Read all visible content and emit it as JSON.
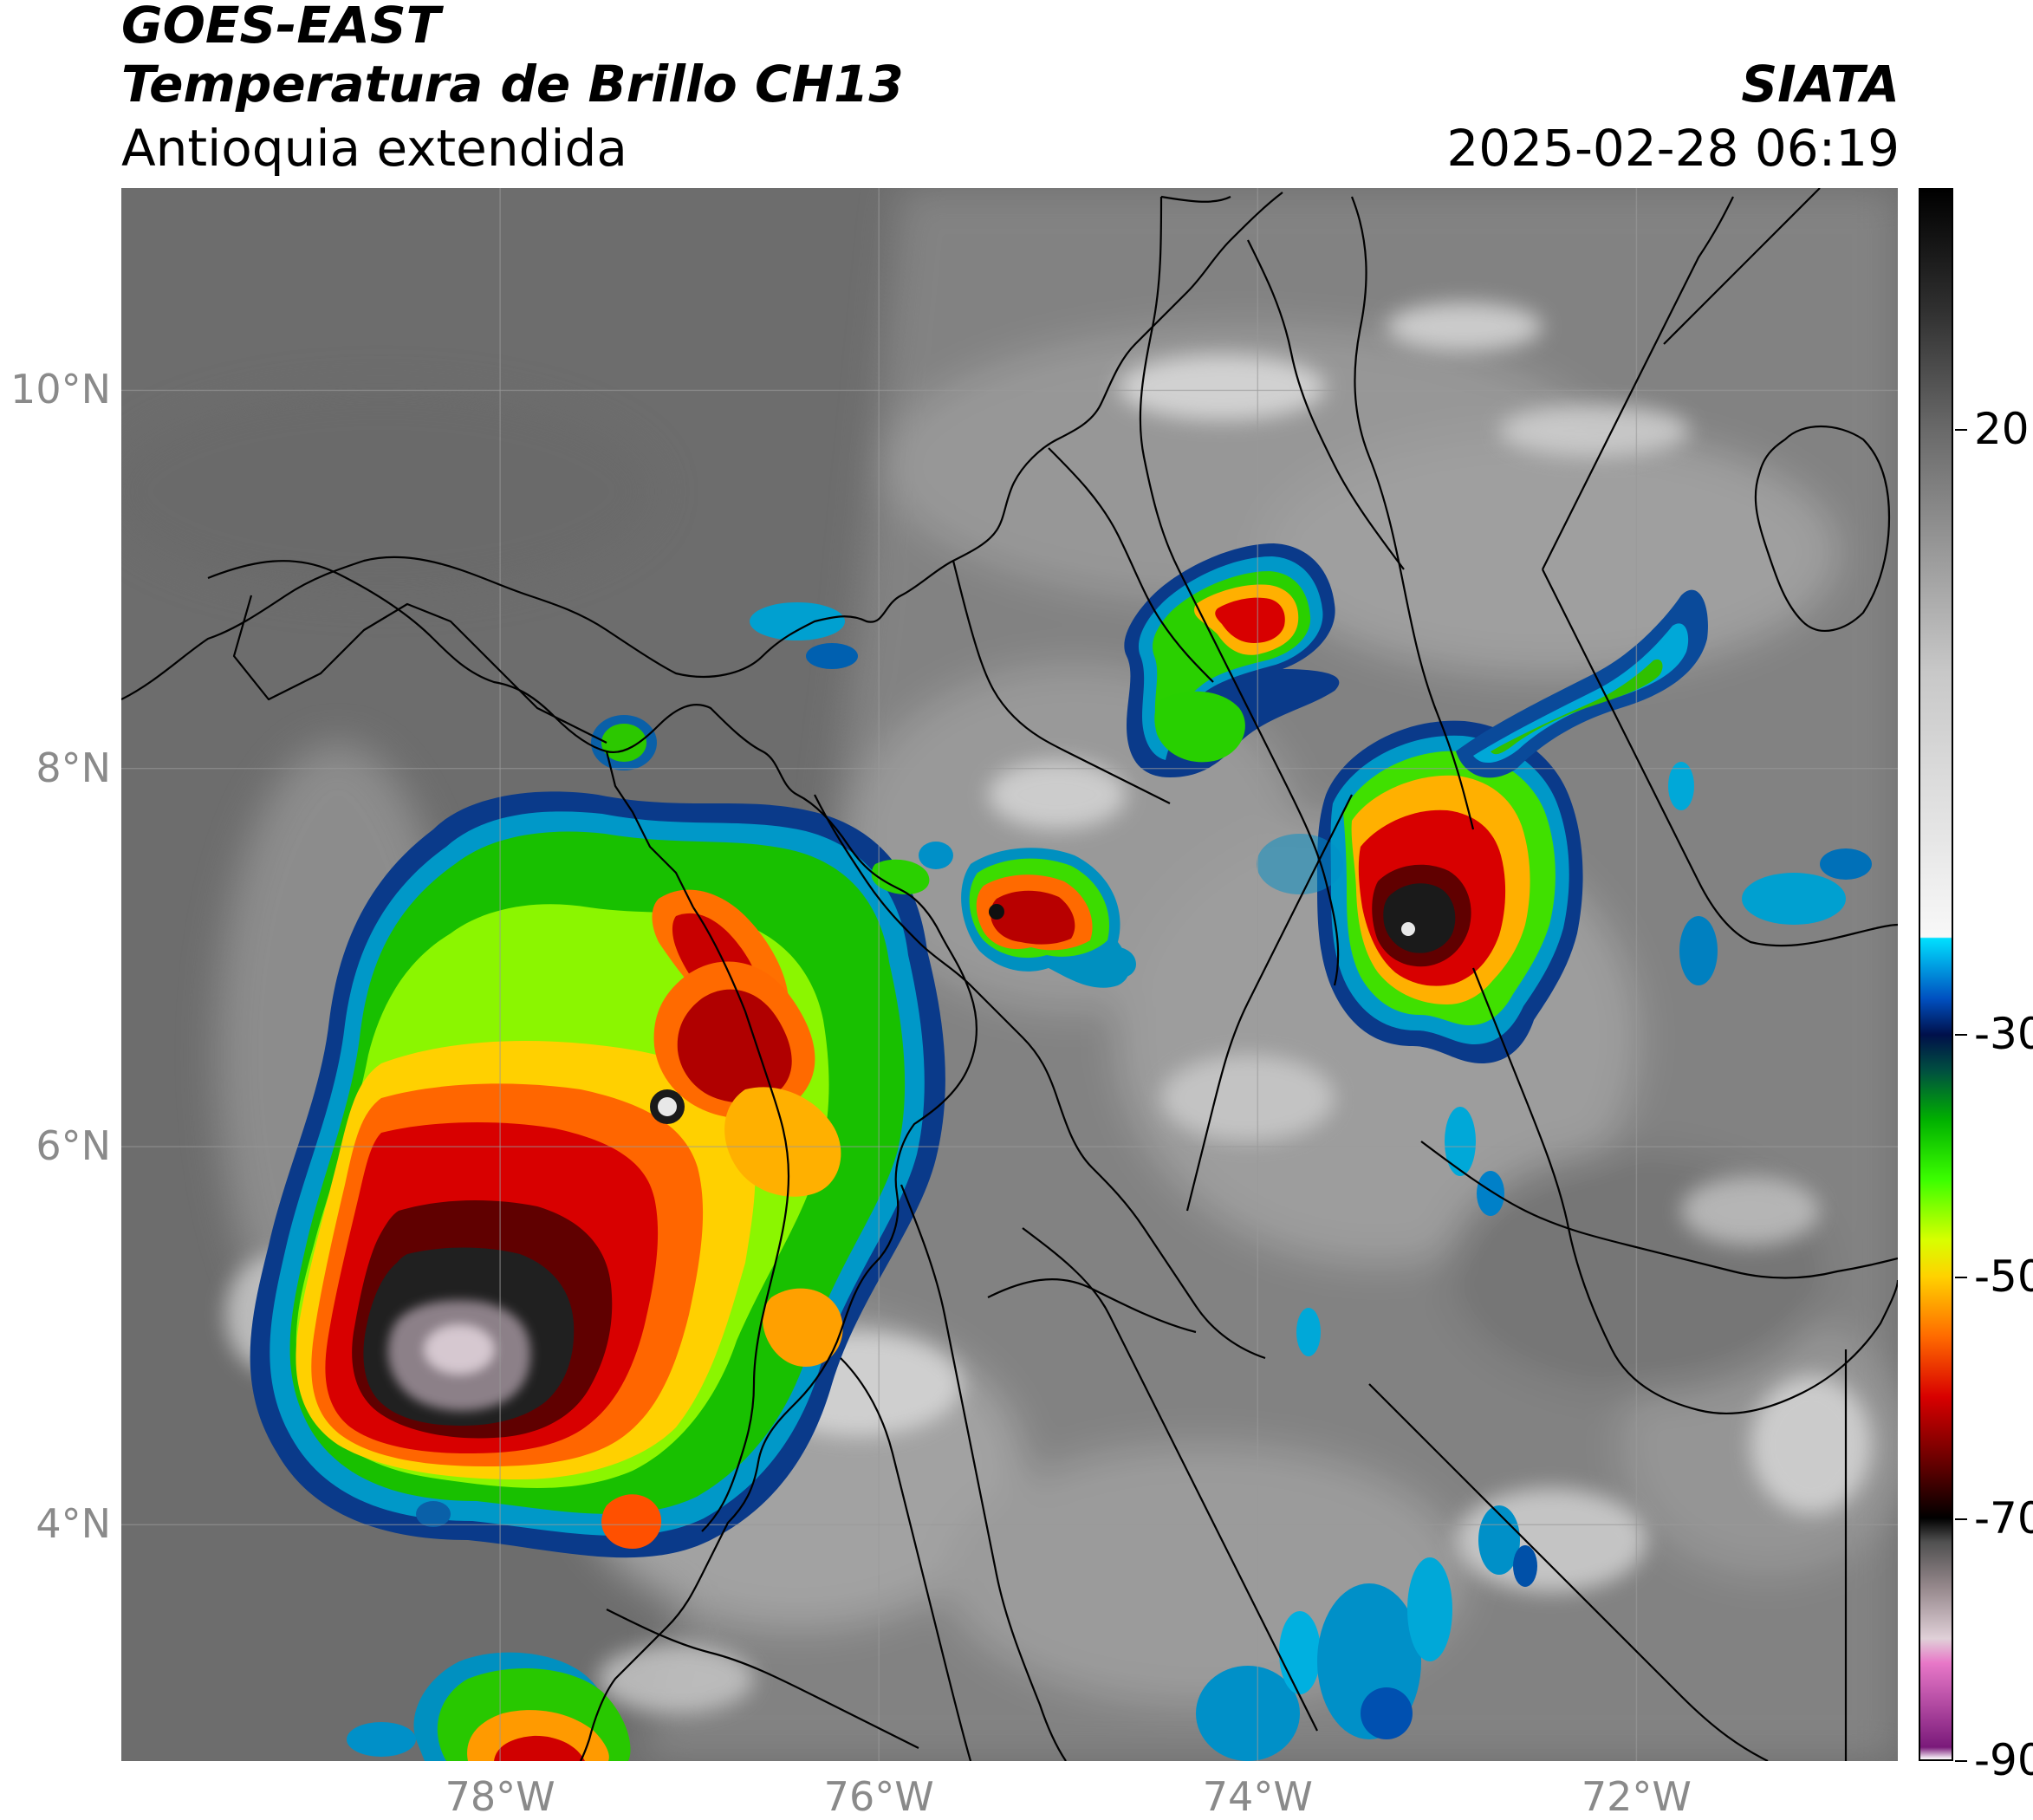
{
  "header": {
    "title_line1": "GOES-EAST",
    "title_line2": "Temperatura de Brillo CH13",
    "subtitle": "Antioquia extendida",
    "brand": "SIATA",
    "datetime": "2025-02-28 06:19"
  },
  "map": {
    "extent": {
      "lon_min": -80.0,
      "lon_max": -70.62,
      "lat_min": 2.75,
      "lat_max": 11.07
    },
    "lat_ticks": [
      {
        "value": 10,
        "label": "10°N"
      },
      {
        "value": 8,
        "label": "8°N"
      },
      {
        "value": 6,
        "label": "6°N"
      },
      {
        "value": 4,
        "label": "4°N"
      }
    ],
    "lon_ticks": [
      {
        "value": -78,
        "label": "78°W"
      },
      {
        "value": -76,
        "label": "76°W"
      },
      {
        "value": -74,
        "label": "74°W"
      },
      {
        "value": -72,
        "label": "72°W"
      }
    ],
    "colors": {
      "ocean_gray": "#6f6f6f",
      "land_gray": "#8c8c8c",
      "boundary": "#000000",
      "grid": "#9a9a9a"
    }
  },
  "colorbar": {
    "range": [
      -90,
      40
    ],
    "ticks": [
      {
        "value": 20,
        "label": "20"
      },
      {
        "value": -30,
        "label": "-30"
      },
      {
        "value": -50,
        "label": "-50"
      },
      {
        "value": -70,
        "label": "-70"
      },
      {
        "value": -90,
        "label": "-90"
      }
    ],
    "stops": [
      {
        "value": -90,
        "color": "#ffffff"
      },
      {
        "value": -89,
        "color": "#7a1a7a"
      },
      {
        "value": -82,
        "color": "#e878c8"
      },
      {
        "value": -80,
        "color": "#e0d0d8"
      },
      {
        "value": -76,
        "color": "#9a8c90"
      },
      {
        "value": -72,
        "color": "#505050"
      },
      {
        "value": -70,
        "color": "#000000"
      },
      {
        "value": -66,
        "color": "#5a0000"
      },
      {
        "value": -60,
        "color": "#d80000"
      },
      {
        "value": -55,
        "color": "#ff6a00"
      },
      {
        "value": -50,
        "color": "#ffd200"
      },
      {
        "value": -47,
        "color": "#d8ff00"
      },
      {
        "value": -42,
        "color": "#3cff00"
      },
      {
        "value": -37,
        "color": "#00b000"
      },
      {
        "value": -33,
        "color": "#005040"
      },
      {
        "value": -30,
        "color": "#00104a"
      },
      {
        "value": -27,
        "color": "#0050c0"
      },
      {
        "value": -22,
        "color": "#00e0ff"
      },
      {
        "value": -21.9,
        "color": "#f8f8f8"
      },
      {
        "value": 0,
        "color": "#c8c8c8"
      },
      {
        "value": 20,
        "color": "#6a6a6a"
      },
      {
        "value": 30,
        "color": "#303030"
      },
      {
        "value": 40,
        "color": "#000000"
      }
    ]
  }
}
